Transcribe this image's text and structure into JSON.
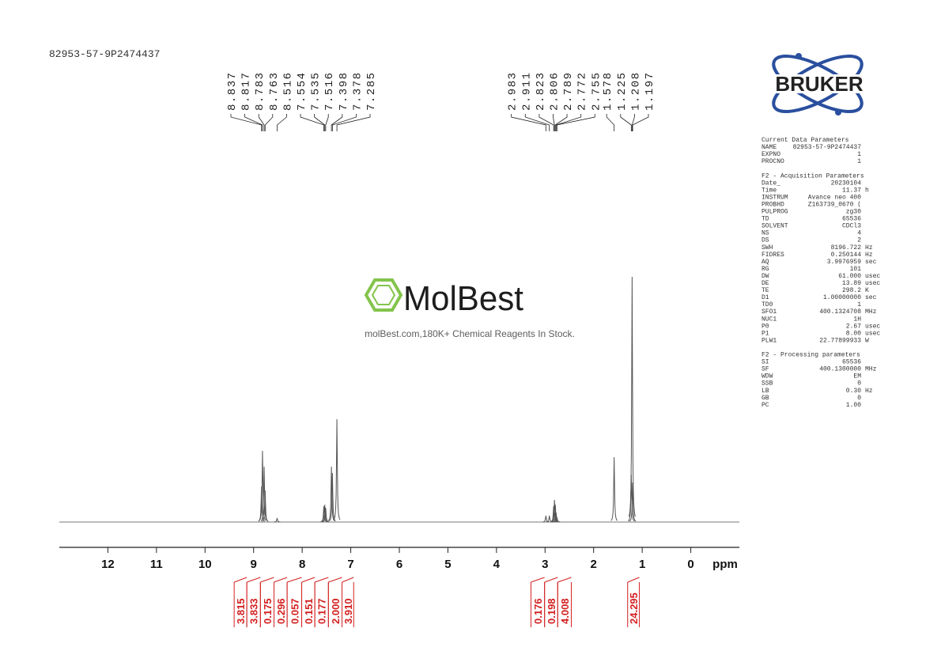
{
  "sample_id": "82953-57-9P2474437",
  "logo_text": "BRUKER",
  "watermark": {
    "brand": "MolBest",
    "tagline": "molBest.com,180K+ Chemical Reagents In Stock."
  },
  "chart_data": {
    "type": "spectrum",
    "x_label": "ppm",
    "xlim": [
      13,
      -1
    ],
    "xticks": [
      12,
      11,
      10,
      9,
      8,
      7,
      6,
      5,
      4,
      3,
      2,
      1,
      0
    ],
    "ylim": [
      0,
      320
    ],
    "color": "#555555",
    "peaks": {
      "x": [
        8.837,
        8.817,
        8.783,
        8.763,
        8.516,
        7.554,
        7.535,
        7.516,
        7.398,
        7.378,
        7.285,
        2.983,
        2.911,
        2.823,
        2.806,
        2.789,
        2.772,
        2.755,
        1.578,
        1.225,
        1.208,
        1.197
      ],
      "values": [
        45,
        90,
        70,
        40,
        5,
        20,
        22,
        18,
        70,
        62,
        130,
        8,
        8,
        20,
        28,
        22,
        12,
        6,
        82,
        60,
        310,
        50
      ]
    },
    "integrals": {
      "color": "#d42020",
      "values": [
        3.815,
        3.833,
        0.175,
        0.296,
        0.057,
        0.151,
        0.177,
        2.0,
        3.91,
        0.176,
        0.198,
        4.008,
        24.295
      ],
      "value_labels": [
        "3.815",
        "3.833",
        "0.175",
        "0.296",
        "0.057",
        "0.151",
        "0.177",
        "2.000",
        "3.910",
        "0.176",
        "0.198",
        "4.008",
        "24.295"
      ],
      "ranges": [
        [
          9.4,
          9.14
        ],
        [
          9.14,
          8.86
        ],
        [
          8.86,
          8.58
        ],
        [
          8.58,
          8.31
        ],
        [
          8.31,
          8.01
        ],
        [
          8.01,
          7.74
        ],
        [
          7.74,
          7.46
        ],
        [
          7.46,
          7.18
        ],
        [
          7.18,
          6.94
        ],
        [
          3.29,
          3.01
        ],
        [
          3.01,
          2.74
        ],
        [
          2.74,
          2.46
        ],
        [
          1.3,
          1.06
        ]
      ]
    }
  },
  "parameters": [
    {
      "title": "Current Data Parameters",
      "rows": [
        [
          "NAME",
          "82953-57-9P2474437"
        ],
        [
          "EXPNO",
          "1"
        ],
        [
          "PROCNO",
          "1"
        ]
      ]
    },
    {
      "title": "F2 - Acquisition Parameters",
      "rows": [
        [
          "Date_",
          "20230104"
        ],
        [
          "Time",
          "11.37",
          "h"
        ],
        [
          "INSTRUM",
          "Avance neo 400"
        ],
        [
          "PROBHD",
          "Z163739_0670 ("
        ],
        [
          "PULPROG",
          "zg30"
        ],
        [
          "TD",
          "65536"
        ],
        [
          "SOLVENT",
          "CDCl3"
        ],
        [
          "NS",
          "4"
        ],
        [
          "DS",
          "2"
        ],
        [
          "SWH",
          "8196.722",
          "Hz"
        ],
        [
          "FIDRES",
          "0.250144",
          "Hz"
        ],
        [
          "AQ",
          "3.9976959",
          "sec"
        ],
        [
          "RG",
          "101"
        ],
        [
          "DW",
          "61.000",
          "usec"
        ],
        [
          "DE",
          "13.89",
          "usec"
        ],
        [
          "TE",
          "298.2",
          "K"
        ],
        [
          "D1",
          "1.00000000",
          "sec"
        ],
        [
          "TD0",
          "1"
        ],
        [
          "SFO1",
          "400.1324708",
          "MHz"
        ],
        [
          "NUC1",
          "1H"
        ],
        [
          "P0",
          "2.67",
          "usec"
        ],
        [
          "P1",
          "8.00",
          "usec"
        ],
        [
          "PLW1",
          "22.77899933",
          "W"
        ]
      ]
    },
    {
      "title": "F2 - Processing parameters",
      "rows": [
        [
          "SI",
          "65536"
        ],
        [
          "SF",
          "400.1300000",
          "MHz"
        ],
        [
          "WDW",
          "EM"
        ],
        [
          "SSB",
          "0"
        ],
        [
          "LB",
          "0.30",
          "Hz"
        ],
        [
          "GB",
          "0"
        ],
        [
          "PC",
          "1.00"
        ]
      ]
    }
  ]
}
